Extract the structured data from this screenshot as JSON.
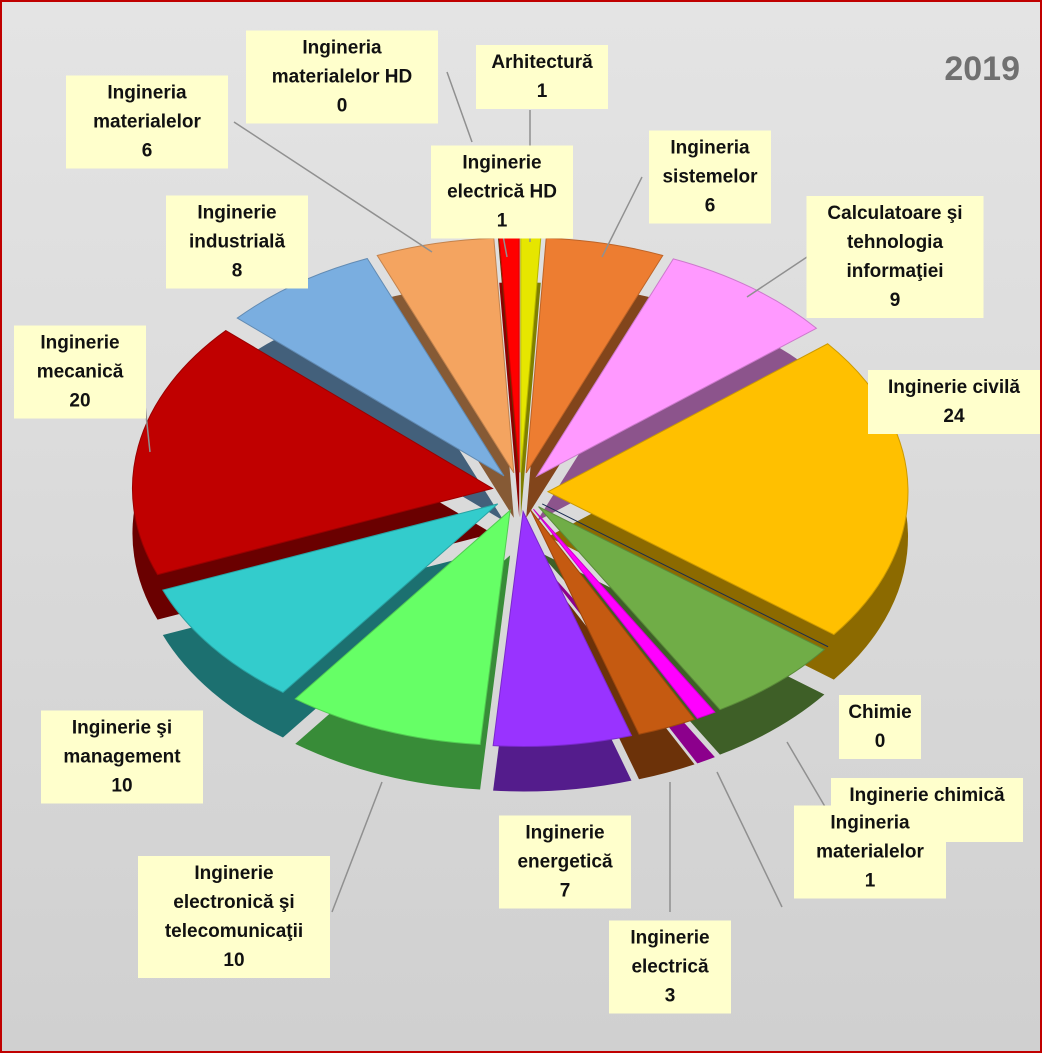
{
  "chart_data": {
    "type": "pie",
    "title": "2019",
    "categories": [
      "Arhitectură",
      "Ingineria sistemelor",
      "Calculatoare şi tehnologia informaţiei",
      "Inginerie civilă",
      "Chimie",
      "Inginerie chimică",
      "Ingineria materialelor",
      "Inginerie electrică",
      "Inginerie energetică",
      "Inginerie electronică şi telecomunicaţii",
      "Inginerie şi management",
      "Inginerie mecanică",
      "Inginerie industrială",
      "Ingineria materialelor",
      "Ingineria materialelor HD",
      "Inginerie electrică HD"
    ],
    "values": [
      1,
      6,
      9,
      24,
      0,
      7,
      1,
      3,
      7,
      10,
      10,
      20,
      8,
      6,
      0,
      1
    ],
    "colors": [
      "#e6e600",
      "#ed7d31",
      "#ff99ff",
      "#ffc000",
      "#1f3864",
      "#70ad47",
      "#ff00ff",
      "#c55a11",
      "#9933ff",
      "#66ff66",
      "#33cccc",
      "#c00000",
      "#7aaee0",
      "#f4a460",
      "#7b3f00",
      "#ff0000"
    ]
  }
}
